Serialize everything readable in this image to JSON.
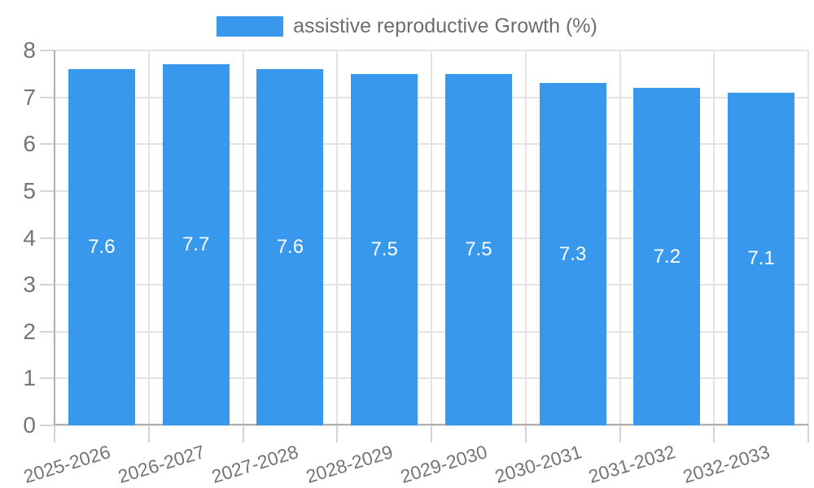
{
  "page": {
    "background": "#ffffff"
  },
  "legend": {
    "label": "assistive reproductive Growth (%)"
  },
  "chart_data": {
    "type": "bar",
    "title": "assistive reproductive Growth (%)",
    "categories": [
      "2025-2026",
      "2026-2027",
      "2027-2028",
      "2028-2029",
      "2029-2030",
      "2030-2031",
      "2031-2032",
      "2032-2033"
    ],
    "series": [
      {
        "name": "assistive reproductive Growth (%)",
        "values": [
          7.6,
          7.7,
          7.6,
          7.5,
          7.5,
          7.3,
          7.2,
          7.1
        ]
      }
    ],
    "value_labels": [
      "7.6",
      "7.7",
      "7.6",
      "7.5",
      "7.5",
      "7.3",
      "7.2",
      "7.1"
    ],
    "xlabel": "",
    "ylabel": "",
    "ylim": [
      0,
      8
    ],
    "y_ticks": [
      "0",
      "1",
      "2",
      "3",
      "4",
      "5",
      "6",
      "7",
      "8"
    ],
    "grid": true,
    "legend_position": "top",
    "x_tick_rotation_deg": -17,
    "colors": {
      "bar": "#3899EC",
      "grid": "#e3e3e3",
      "axis": "#b0b0b0",
      "tick": "#d4d4d4",
      "tick_label_text": "#757575",
      "legend_text": "#6d6d6d",
      "bar_label_text": "#ffffff",
      "background": "#ffffff"
    }
  }
}
